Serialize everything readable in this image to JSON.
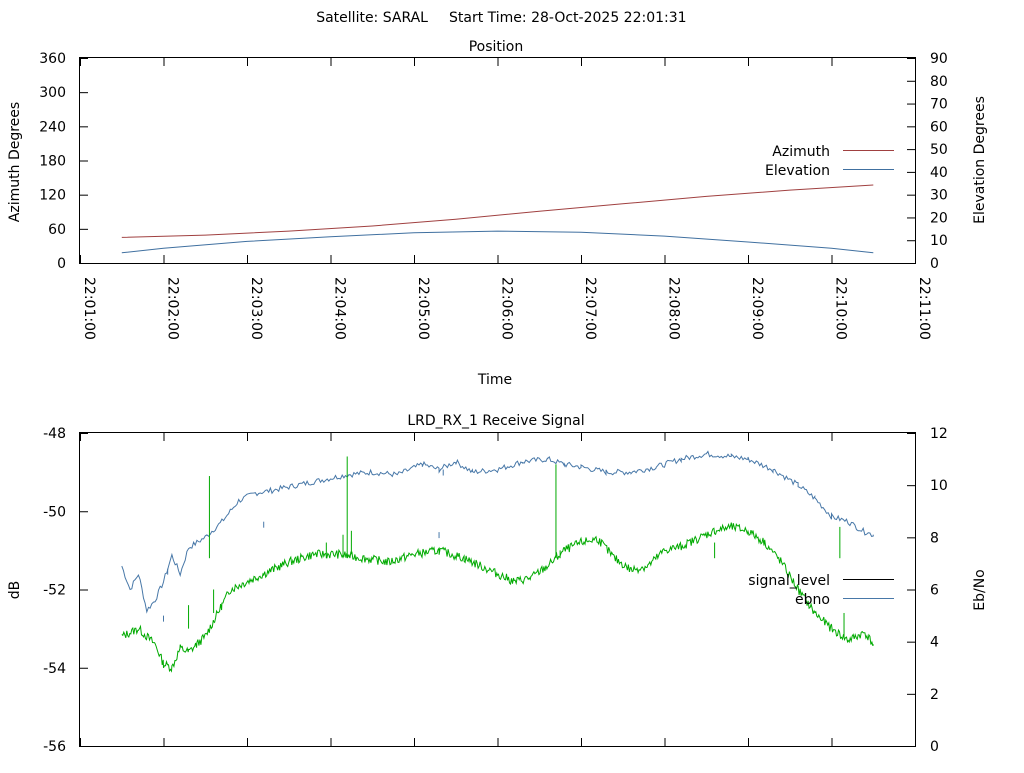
{
  "header": {
    "satellite_label": "Satellite: SARAL",
    "start_time_label": "Start Time: 28-Oct-2025 22:01:31"
  },
  "colors": {
    "azimuth": "#a04040",
    "elevation": "#4070a0",
    "signal_level": "#00aa00",
    "ebno": "#4878a8",
    "legend_signal": "#000000",
    "legend_ebno": "#4878a8"
  },
  "chart_data": [
    {
      "type": "line",
      "title": "Position",
      "xlabel": "Time",
      "ylabel": "Azimuth Degrees",
      "y2label": "Elevation Degrees",
      "ylim": [
        0,
        360
      ],
      "y2lim": [
        0,
        90
      ],
      "yticks": [
        "0",
        "60",
        "120",
        "180",
        "240",
        "300",
        "360"
      ],
      "y2ticks": [
        "0",
        "10",
        "20",
        "30",
        "40",
        "50",
        "60",
        "70",
        "80",
        "90"
      ],
      "xlim_min": [
        0,
        10
      ],
      "xticks": [
        "22:01:00",
        "22:02:00",
        "22:03:00",
        "22:04:00",
        "22:05:00",
        "22:06:00",
        "22:07:00",
        "22:08:00",
        "22:09:00",
        "22:10:00",
        "22:11:00"
      ],
      "legend": "right",
      "series": [
        {
          "name": "Azimuth",
          "axis": "left",
          "x": [
            0.5,
            1.5,
            2.5,
            3.5,
            4.5,
            5.5,
            6.5,
            7.5,
            8.5,
            9.5
          ],
          "values": [
            45,
            49,
            56,
            65,
            77,
            91,
            104,
            117,
            128,
            137
          ],
          "end": [
            9.5,
            137
          ]
        },
        {
          "name": "Elevation",
          "axis": "right",
          "x": [
            0.5,
            1.0,
            2.0,
            3.0,
            4.0,
            5.0,
            6.0,
            7.0,
            8.0,
            9.0,
            9.5
          ],
          "values": [
            4.5,
            6.5,
            9.5,
            11.5,
            13.3,
            14.0,
            13.5,
            11.8,
            9.2,
            6.5,
            4.5
          ]
        }
      ]
    },
    {
      "type": "line",
      "title": "LRD_RX_1 Receive Signal",
      "ylabel": "dB",
      "y2label": "Eb/No",
      "ylim": [
        -56,
        -48
      ],
      "y2lim": [
        0,
        12
      ],
      "yticks": [
        "-48",
        "-50",
        "-52",
        "-54",
        "-56"
      ],
      "y2ticks": [
        "0",
        "2",
        "4",
        "6",
        "8",
        "10",
        "12"
      ],
      "xlim_min": [
        0,
        10
      ],
      "xtick_count": 10,
      "legend": "right",
      "series": [
        {
          "name": "signal_level",
          "axis": "left",
          "x": [
            0.5,
            0.7,
            0.9,
            1.0,
            1.1,
            1.2,
            1.3,
            1.4,
            1.5,
            1.6,
            1.7,
            1.8,
            2.0,
            2.2,
            2.5,
            2.8,
            3.1,
            3.4,
            3.7,
            4.0,
            4.3,
            4.6,
            4.8,
            5.0,
            5.2,
            5.4,
            5.6,
            5.8,
            6.0,
            6.2,
            6.4,
            6.6,
            6.8,
            7.0,
            7.2,
            7.4,
            7.6,
            7.8,
            8.0,
            8.2,
            8.4,
            8.6,
            8.8,
            9.0,
            9.2,
            9.4,
            9.5
          ],
          "values": [
            -53.2,
            -53.0,
            -53.4,
            -53.9,
            -54.0,
            -53.5,
            -53.6,
            -53.4,
            -53.2,
            -52.8,
            -52.4,
            -52.0,
            -51.8,
            -51.6,
            -51.3,
            -51.1,
            -51.1,
            -51.2,
            -51.3,
            -51.1,
            -51.0,
            -51.2,
            -51.4,
            -51.6,
            -51.8,
            -51.7,
            -51.4,
            -51.0,
            -50.8,
            -50.7,
            -51.2,
            -51.5,
            -51.4,
            -51.0,
            -50.9,
            -50.7,
            -50.5,
            -50.4,
            -50.5,
            -50.8,
            -51.3,
            -52.0,
            -52.6,
            -53.0,
            -53.3,
            -53.1,
            -53.4
          ],
          "spikes": [
            [
              1.3,
              -53.0
            ],
            [
              1.55,
              -49.1
            ],
            [
              1.6,
              -52.6
            ],
            [
              2.95,
              -50.8
            ],
            [
              3.15,
              -51.2
            ],
            [
              3.2,
              -48.6
            ],
            [
              3.25,
              -51.1
            ],
            [
              5.7,
              -48.8
            ],
            [
              5.75,
              -51.0
            ],
            [
              7.6,
              -50.8
            ],
            [
              9.1,
              -50.4
            ],
            [
              9.15,
              -53.2
            ]
          ]
        },
        {
          "name": "ebno",
          "axis": "right",
          "x": [
            0.5,
            0.6,
            0.7,
            0.8,
            0.9,
            1.0,
            1.1,
            1.2,
            1.3,
            1.5,
            1.7,
            1.9,
            2.1,
            2.3,
            2.6,
            2.9,
            3.2,
            3.5,
            3.8,
            4.1,
            4.3,
            4.5,
            4.7,
            5.0,
            5.3,
            5.6,
            5.8,
            6.0,
            6.3,
            6.6,
            6.9,
            7.2,
            7.5,
            7.8,
            8.0,
            8.3,
            8.6,
            8.8,
            9.0,
            9.2,
            9.4,
            9.5
          ],
          "values": [
            6.9,
            6.0,
            6.6,
            5.2,
            5.6,
            6.3,
            7.3,
            6.6,
            7.6,
            8.0,
            8.6,
            9.4,
            9.7,
            9.8,
            10.0,
            10.2,
            10.4,
            10.5,
            10.4,
            10.8,
            10.6,
            10.9,
            10.5,
            10.6,
            10.9,
            11.0,
            10.8,
            10.7,
            10.5,
            10.5,
            10.7,
            11.0,
            11.2,
            11.1,
            11.0,
            10.6,
            10.0,
            9.5,
            8.8,
            8.6,
            8.2,
            8.1
          ],
          "spikes": [
            [
              1.0,
              5.0
            ],
            [
              1.05,
              6.8
            ],
            [
              2.2,
              8.6
            ],
            [
              4.3,
              8.2
            ],
            [
              4.35,
              10.6
            ]
          ]
        }
      ]
    }
  ]
}
